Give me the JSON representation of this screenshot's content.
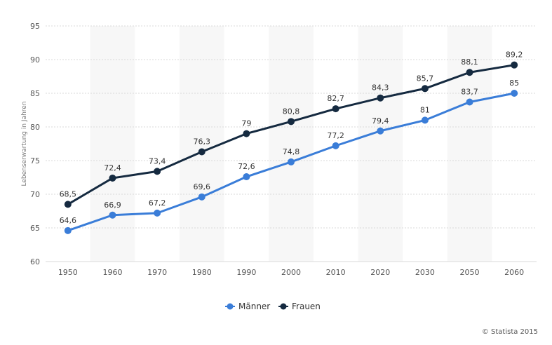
{
  "chart_data": {
    "type": "line",
    "categories": [
      "1950",
      "1960",
      "1970",
      "1980",
      "1990",
      "2000",
      "2010",
      "2020",
      "2030",
      "2050",
      "2060"
    ],
    "series": [
      {
        "name": "Männer",
        "color": "#3a7dd8",
        "values": [
          64.6,
          66.9,
          67.2,
          69.6,
          72.6,
          74.8,
          77.2,
          79.4,
          81,
          83.7,
          85
        ],
        "labels": [
          "64,6",
          "66,9",
          "67,2",
          "69,6",
          "72,6",
          "74,8",
          "77,2",
          "79,4",
          "81",
          "83,7",
          "85"
        ]
      },
      {
        "name": "Frauen",
        "color": "#152a40",
        "values": [
          68.5,
          72.4,
          73.4,
          76.3,
          79,
          80.8,
          82.7,
          84.3,
          85.7,
          88.1,
          89.2
        ],
        "labels": [
          "68,5",
          "72,4",
          "73,4",
          "76,3",
          "79",
          "80,8",
          "82,7",
          "84,3",
          "85,7",
          "88,1",
          "89,2"
        ]
      }
    ],
    "ylabel": "Lebenserwartung in Jahren",
    "ylim": [
      60,
      95
    ],
    "yticks": [
      "60",
      "65",
      "70",
      "75",
      "80",
      "85",
      "90",
      "95"
    ],
    "grid": true,
    "legend": "bottom-center"
  },
  "credit": "© Statista 2015"
}
